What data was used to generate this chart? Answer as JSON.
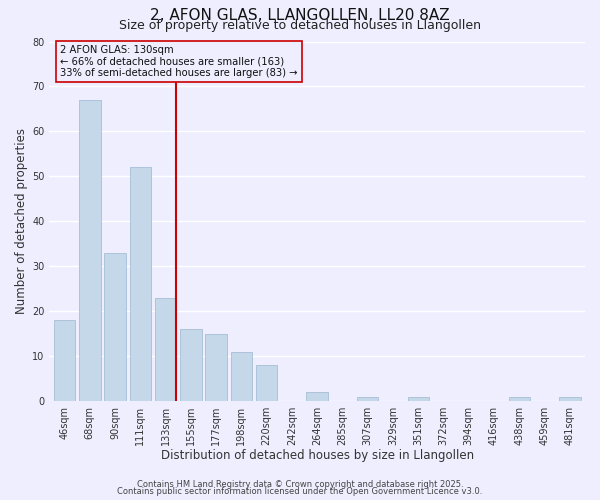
{
  "title": "2, AFON GLAS, LLANGOLLEN, LL20 8AZ",
  "subtitle": "Size of property relative to detached houses in Llangollen",
  "xlabel": "Distribution of detached houses by size in Llangollen",
  "ylabel": "Number of detached properties",
  "categories": [
    "46sqm",
    "68sqm",
    "90sqm",
    "111sqm",
    "133sqm",
    "155sqm",
    "177sqm",
    "198sqm",
    "220sqm",
    "242sqm",
    "264sqm",
    "285sqm",
    "307sqm",
    "329sqm",
    "351sqm",
    "372sqm",
    "394sqm",
    "416sqm",
    "438sqm",
    "459sqm",
    "481sqm"
  ],
  "values": [
    18,
    67,
    33,
    52,
    23,
    16,
    15,
    11,
    8,
    0,
    2,
    0,
    1,
    0,
    1,
    0,
    0,
    0,
    1,
    0,
    1
  ],
  "bar_color": "#c5d8ea",
  "bar_edge_color": "#9ab8d0",
  "vline_color": "#cc0000",
  "annotation_title": "2 AFON GLAS: 130sqm",
  "annotation_line1": "← 66% of detached houses are smaller (163)",
  "annotation_line2": "33% of semi-detached houses are larger (83) →",
  "annotation_box_edge_color": "#cc0000",
  "ylim": [
    0,
    80
  ],
  "yticks": [
    0,
    10,
    20,
    30,
    40,
    50,
    60,
    70,
    80
  ],
  "footer1": "Contains HM Land Registry data © Crown copyright and database right 2025.",
  "footer2": "Contains public sector information licensed under the Open Government Licence v3.0.",
  "background_color": "#eeeeff",
  "plot_bg_color": "#eeeeff",
  "grid_color": "#ffffff",
  "title_fontsize": 11,
  "subtitle_fontsize": 9,
  "axis_label_fontsize": 8.5,
  "tick_fontsize": 7,
  "footer_fontsize": 6
}
